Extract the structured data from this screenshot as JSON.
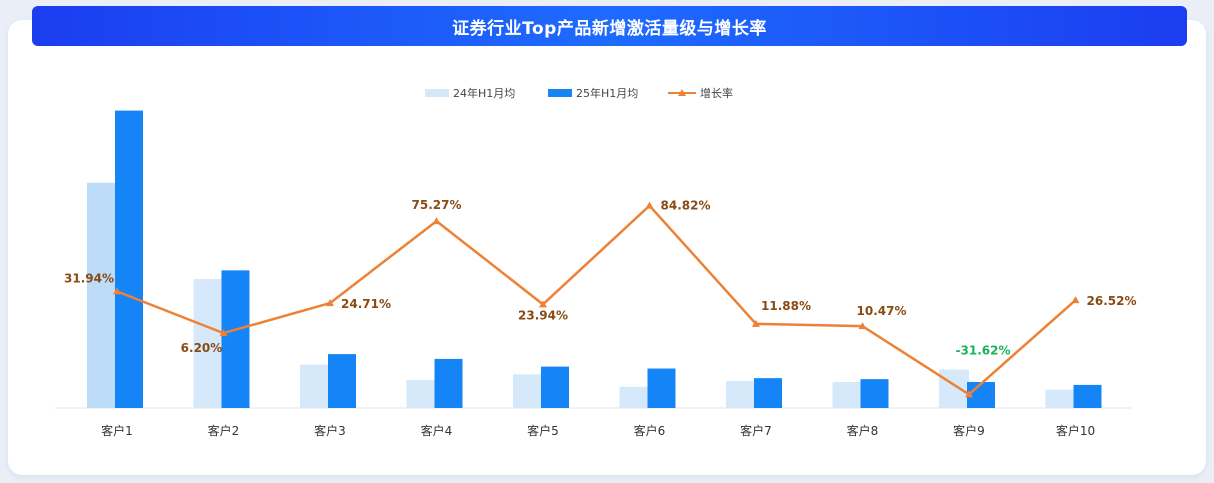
{
  "title": "证券行业Top产品新增激活量级与增长率",
  "chart_data": {
    "type": "bar",
    "categories": [
      "客户1",
      "客户2",
      "客户3",
      "客户4",
      "客户5",
      "客户6",
      "客户7",
      "客户8",
      "客户9",
      "客户10"
    ],
    "series": [
      {
        "name": "24年H1月均",
        "kind": "bar",
        "color": "#d6e9fb",
        "highlight_color": "#bcdcf7",
        "values": [
          234,
          134,
          45,
          29,
          35,
          22,
          28,
          27,
          40,
          19
        ]
      },
      {
        "name": "25年H1月均",
        "kind": "bar",
        "color": "#1584f7",
        "values": [
          309,
          143,
          56,
          51,
          43,
          41,
          31,
          30,
          27,
          24
        ]
      },
      {
        "name": "增长率",
        "kind": "line",
        "color": "#ed8135",
        "unit": "%",
        "values": [
          31.94,
          6.2,
          24.71,
          75.27,
          23.94,
          84.82,
          11.88,
          10.47,
          -31.62,
          26.52
        ],
        "labels": [
          "31.94%",
          "6.20%",
          "24.71%",
          "75.27%",
          "23.94%",
          "84.82%",
          "11.88%",
          "10.47%",
          "-31.62%",
          "26.52%"
        ]
      }
    ],
    "bar_ylim": [
      0,
      320
    ],
    "line_ylim": [
      -40,
      150
    ],
    "label_color": "#8a4a14",
    "negative_label_color": "#19b35a",
    "legend_position": "top-center",
    "grid": false,
    "xlabel": "",
    "ylabel": ""
  }
}
